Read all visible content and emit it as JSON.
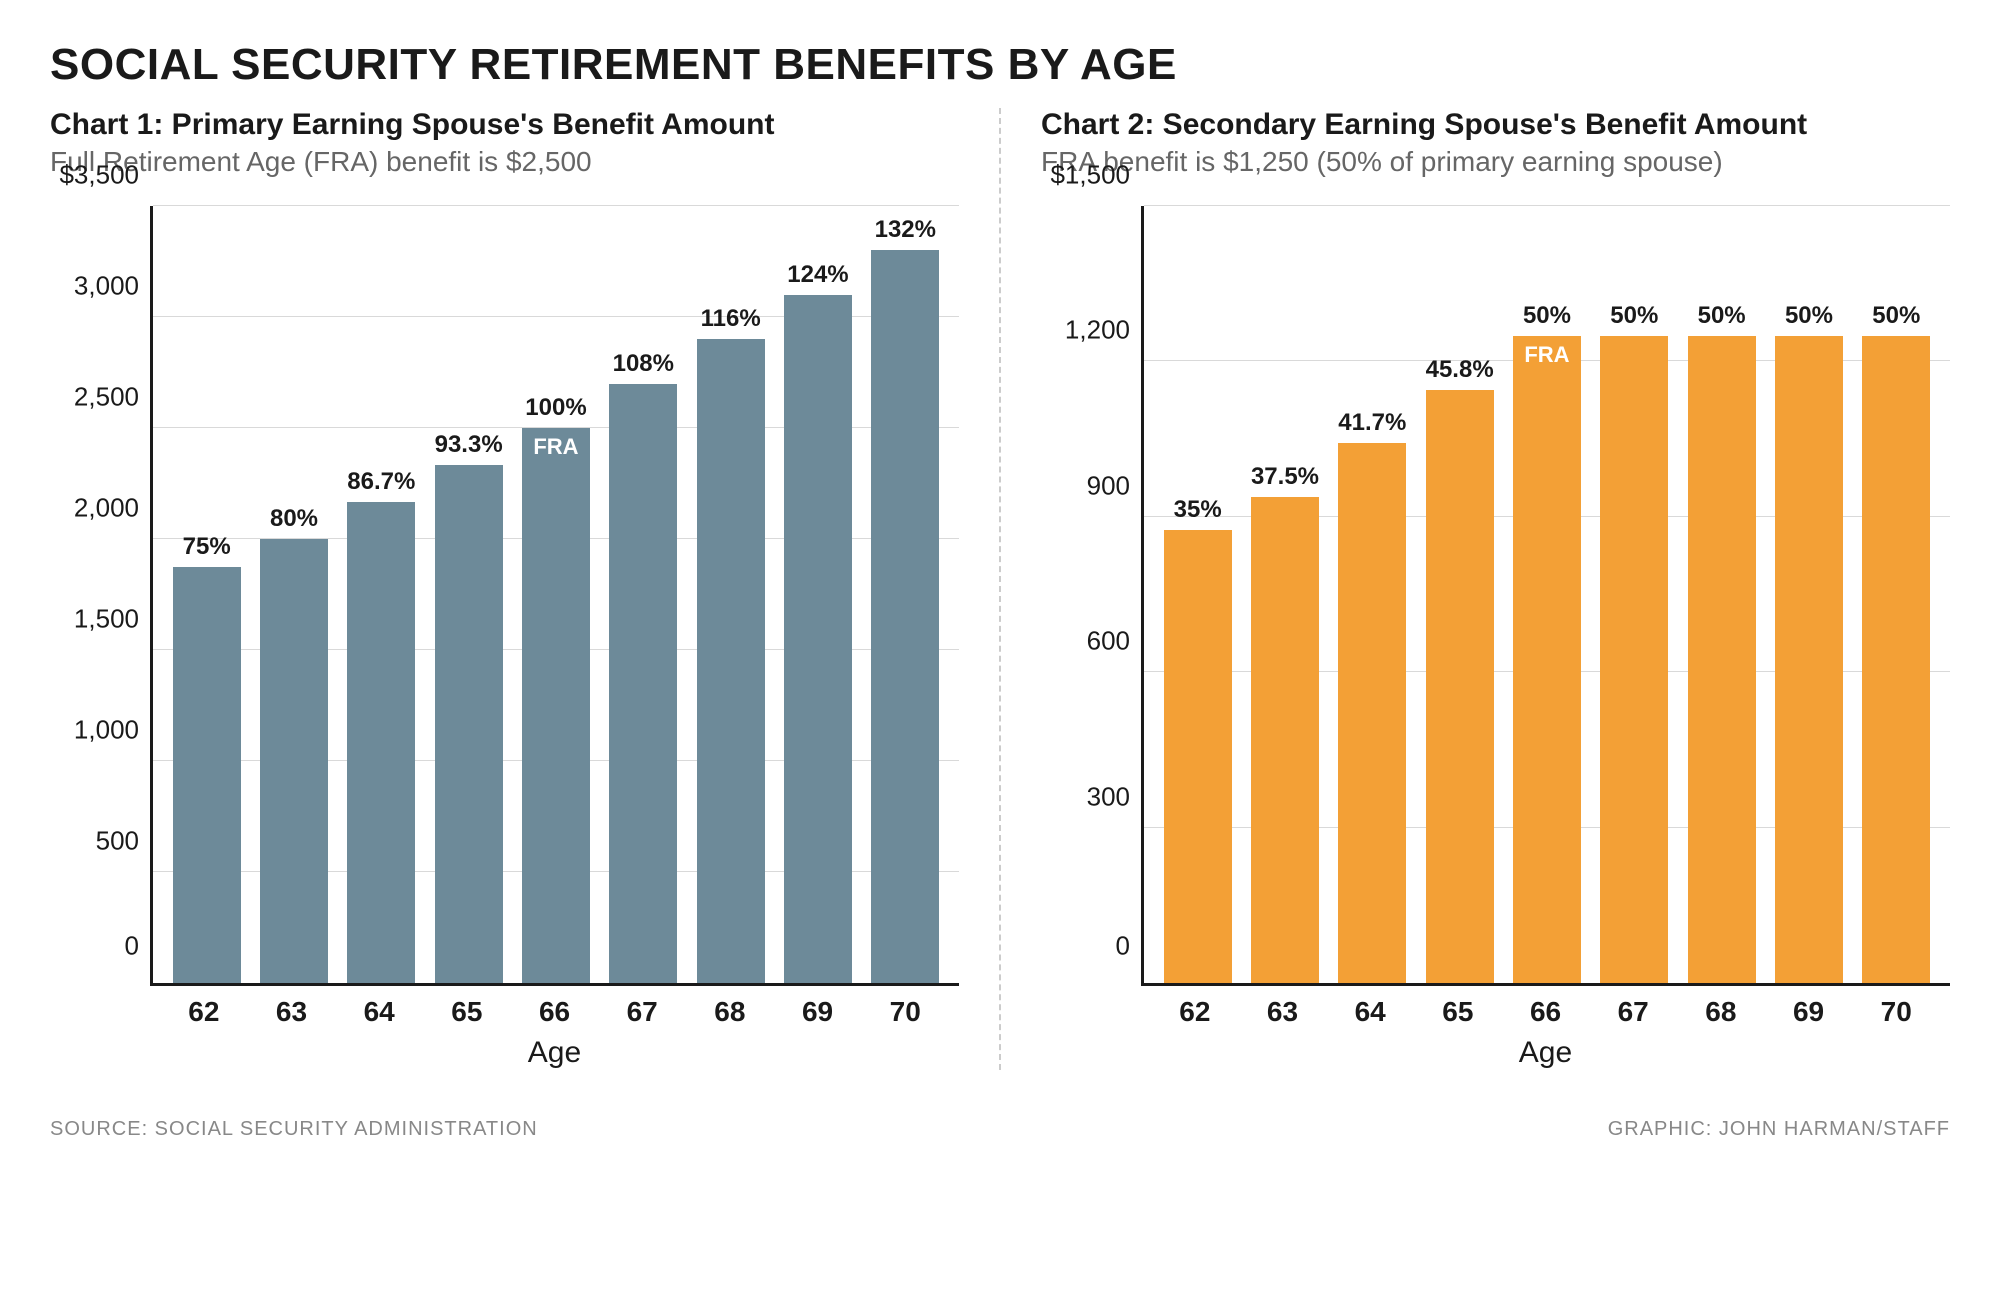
{
  "title": "SOCIAL SECURITY RETIREMENT BENEFITS BY AGE",
  "footer": {
    "source": "SOURCE: SOCIAL SECURITY ADMINISTRATION",
    "credit": "GRAPHIC: JOHN HARMAN/STAFF"
  },
  "axis_label": "Age",
  "fra_label": "FRA",
  "chart1": {
    "type": "bar",
    "title": "Chart 1: Primary Earning Spouse's Benefit Amount",
    "subtitle": "Full Retirement Age (FRA) benefit is $2,500",
    "bar_color": "#6d8a99",
    "axis_color": "#1a1a1a",
    "grid_color": "#d9d9d9",
    "ylim": [
      0,
      3500
    ],
    "yticks": [
      {
        "v": 0,
        "label": "0"
      },
      {
        "v": 500,
        "label": "500"
      },
      {
        "v": 1000,
        "label": "1,000"
      },
      {
        "v": 1500,
        "label": "1,500"
      },
      {
        "v": 2000,
        "label": "2,000"
      },
      {
        "v": 2500,
        "label": "2,500"
      },
      {
        "v": 3000,
        "label": "3,000"
      },
      {
        "v": 3500,
        "label": "$3,500"
      }
    ],
    "categories": [
      "62",
      "63",
      "64",
      "65",
      "66",
      "67",
      "68",
      "69",
      "70"
    ],
    "values": [
      1875,
      2000,
      2167,
      2332,
      2500,
      2700,
      2900,
      3100,
      3300
    ],
    "value_labels": [
      "75%",
      "80%",
      "86.7%",
      "93.3%",
      "100%",
      "108%",
      "116%",
      "124%",
      "132%"
    ],
    "fra_index": 4
  },
  "chart2": {
    "type": "bar",
    "title": "Chart 2: Secondary Earning Spouse's Benefit Amount",
    "subtitle": "FRA benefit is $1,250 (50% of primary earning spouse)",
    "bar_color": "#f3a036",
    "axis_color": "#1a1a1a",
    "grid_color": "#d9d9d9",
    "ylim": [
      0,
      1500
    ],
    "yticks": [
      {
        "v": 0,
        "label": "0"
      },
      {
        "v": 300,
        "label": "300"
      },
      {
        "v": 600,
        "label": "600"
      },
      {
        "v": 900,
        "label": "900"
      },
      {
        "v": 1200,
        "label": "1,200"
      },
      {
        "v": 1500,
        "label": "$1,500"
      }
    ],
    "categories": [
      "62",
      "63",
      "64",
      "65",
      "66",
      "67",
      "68",
      "69",
      "70"
    ],
    "values": [
      875,
      938,
      1043,
      1145,
      1250,
      1250,
      1250,
      1250,
      1250
    ],
    "value_labels": [
      "35%",
      "37.5%",
      "41.7%",
      "45.8%",
      "50%",
      "50%",
      "50%",
      "50%",
      "50%"
    ],
    "fra_index": 4
  }
}
